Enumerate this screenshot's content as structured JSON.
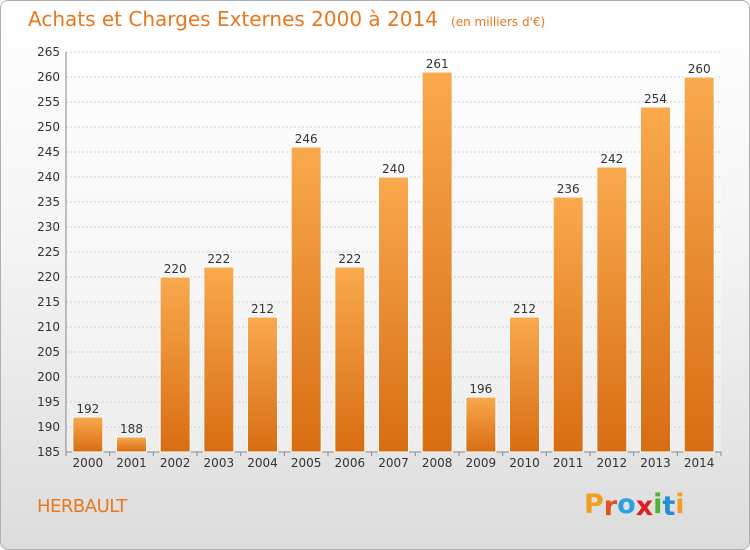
{
  "chart_data": {
    "type": "bar",
    "title": "Achats et Charges Externes 2000 à 2014",
    "subtitle": "(en milliers d'€)",
    "categories": [
      "2000",
      "2001",
      "2002",
      "2003",
      "2004",
      "2005",
      "2006",
      "2007",
      "2008",
      "2009",
      "2010",
      "2011",
      "2012",
      "2013",
      "2014"
    ],
    "values": [
      192,
      188,
      220,
      222,
      212,
      246,
      222,
      240,
      261,
      196,
      212,
      236,
      242,
      254,
      260
    ],
    "ylim": [
      185,
      265
    ],
    "yticks": [
      185,
      190,
      195,
      200,
      205,
      210,
      215,
      220,
      225,
      230,
      235,
      240,
      245,
      250,
      255,
      260,
      265
    ],
    "grid": true,
    "xlabel": "",
    "ylabel": ""
  },
  "place_name": "HERBAULT",
  "logo": {
    "text": "Proxiti",
    "letters": [
      "P",
      "r",
      "o",
      "x",
      "i",
      "t",
      "i"
    ],
    "colors": [
      "#f0a020",
      "#e05020",
      "#2aa0e0",
      "#e02020",
      "#50b030",
      "#2090d0",
      "#f0a020"
    ]
  },
  "colors": {
    "bar_light": "#f9a94e",
    "bar_dark": "#d86d12",
    "accent": "#e8781e"
  }
}
